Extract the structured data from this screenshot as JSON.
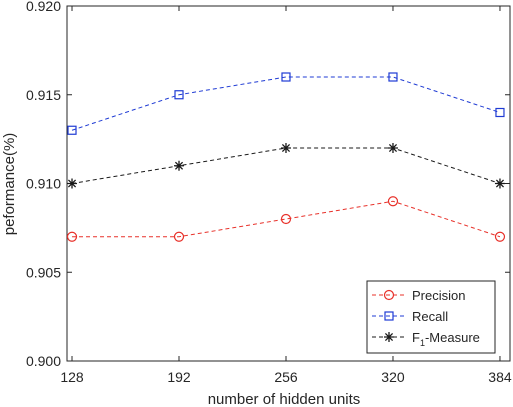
{
  "chart_data": {
    "type": "line",
    "title": "",
    "xlabel": "number of hidden units",
    "ylabel": "peformance(%)",
    "x": [
      128,
      192,
      256,
      320,
      384
    ],
    "x_tick_labels": [
      "128",
      "192",
      "256",
      "320",
      "384"
    ],
    "xlim": [
      125,
      390
    ],
    "ylim": [
      0.9,
      0.92
    ],
    "y_ticks": [
      0.9,
      0.905,
      0.91,
      0.915,
      0.92
    ],
    "y_tick_labels": [
      "0.900",
      "0.905",
      "0.910",
      "0.915",
      "0.920"
    ],
    "grid": false,
    "legend_position": "bottom-right",
    "series": [
      {
        "name": "Precision",
        "name_main": "Precision",
        "name_sub": "",
        "name_tail": "",
        "color": "#e8312a",
        "marker": "circle",
        "line": "dashed",
        "values": [
          0.907,
          0.907,
          0.908,
          0.909,
          0.907
        ]
      },
      {
        "name": "Recall",
        "name_main": "Recall",
        "name_sub": "",
        "name_tail": "",
        "color": "#1f3bd4",
        "marker": "square",
        "line": "dashed",
        "values": [
          0.913,
          0.915,
          0.916,
          0.916,
          0.914
        ]
      },
      {
        "name": "F1-Measure",
        "name_main": "F",
        "name_sub": "1",
        "name_tail": "-Measure",
        "color": "#1a1a1a",
        "marker": "asterisk",
        "line": "dashed",
        "values": [
          0.91,
          0.911,
          0.912,
          0.912,
          0.91
        ]
      }
    ]
  }
}
